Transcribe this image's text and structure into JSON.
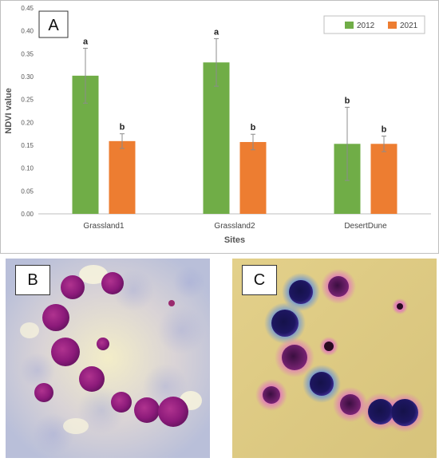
{
  "chart_data": {
    "type": "bar",
    "panel_label": "A",
    "categories": [
      "Grassland1",
      "Grassland2",
      "DesertDune"
    ],
    "series": [
      {
        "name": "2012",
        "color": "#70AD47",
        "values": [
          0.302,
          0.331,
          0.153
        ],
        "errors": [
          0.06,
          0.052,
          0.08
        ],
        "letters": [
          "a",
          "a",
          "b"
        ]
      },
      {
        "name": "2021",
        "color": "#ED7D31",
        "values": [
          0.159,
          0.157,
          0.153
        ],
        "errors": [
          0.016,
          0.017,
          0.017
        ],
        "letters": [
          "b",
          "b",
          "b"
        ]
      }
    ],
    "xlabel": "Sites",
    "ylabel": "NDVI value",
    "ylim": [
      0,
      0.45
    ],
    "yticks": [
      "0.00",
      "0.05",
      "0.10",
      "0.15",
      "0.20",
      "0.25",
      "0.30",
      "0.35",
      "0.40",
      "0.45"
    ],
    "grid": false,
    "legend": "top-right"
  },
  "panels": {
    "b_label": "B",
    "c_label": "C"
  }
}
